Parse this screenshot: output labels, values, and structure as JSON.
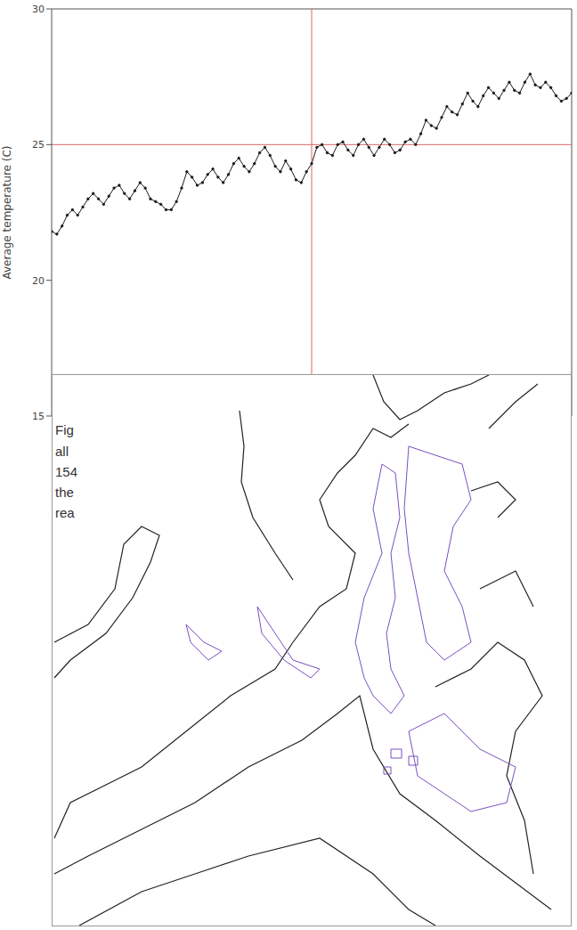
{
  "chart_data": {
    "type": "line",
    "y_label": "Average temperature (C)",
    "x": [
      0,
      1,
      2,
      3,
      4,
      5,
      6,
      7,
      8,
      9,
      10,
      11,
      12,
      13,
      14,
      15,
      16,
      17,
      18,
      19,
      20,
      21,
      22,
      23,
      24,
      25,
      26,
      27,
      28,
      29,
      30,
      31,
      32,
      33,
      34,
      35,
      36,
      37,
      38,
      39,
      40,
      41,
      42,
      43,
      44,
      45,
      46,
      47,
      48,
      49,
      50,
      51,
      52,
      53,
      54,
      55,
      56,
      57,
      58,
      59,
      60,
      61,
      62,
      63,
      64,
      65,
      66,
      67,
      68,
      69,
      70,
      71,
      72,
      73,
      74,
      75,
      76,
      77,
      78,
      79,
      80,
      81,
      82,
      83,
      84,
      85,
      86,
      87,
      88,
      89,
      90,
      91,
      92,
      93,
      94,
      95,
      96,
      97,
      98,
      99,
      100
    ],
    "values": [
      21.8,
      21.7,
      22.0,
      22.4,
      22.6,
      22.4,
      22.7,
      23.0,
      23.2,
      23.0,
      22.8,
      23.1,
      23.4,
      23.5,
      23.2,
      23.0,
      23.3,
      23.6,
      23.4,
      23.0,
      22.9,
      22.8,
      22.6,
      22.6,
      22.9,
      23.4,
      24.0,
      23.8,
      23.5,
      23.6,
      23.9,
      24.1,
      23.8,
      23.6,
      23.9,
      24.3,
      24.5,
      24.2,
      24.0,
      24.3,
      24.7,
      24.9,
      24.6,
      24.2,
      24.0,
      24.4,
      24.1,
      23.7,
      23.6,
      24.0,
      24.3,
      24.9,
      25.0,
      24.7,
      24.6,
      25.0,
      25.1,
      24.8,
      24.6,
      25.0,
      25.2,
      24.9,
      24.6,
      24.9,
      25.2,
      25.0,
      24.7,
      24.8,
      25.1,
      25.2,
      25.0,
      25.4,
      25.9,
      25.7,
      25.6,
      26.0,
      26.4,
      26.2,
      26.1,
      26.5,
      26.9,
      26.6,
      26.4,
      26.8,
      27.1,
      26.9,
      26.7,
      27.0,
      27.3,
      27.0,
      26.9,
      27.3,
      27.6,
      27.2,
      27.1,
      27.3,
      27.1,
      26.8,
      26.6,
      26.7,
      26.9
    ],
    "color": "#1a1a1a",
    "marker": "dot",
    "xlim": [
      0,
      100
    ],
    "ylim": [
      15,
      30
    ],
    "yticks": [
      15,
      20,
      25,
      30
    ],
    "grid": false,
    "tick_labels": "y",
    "reference_lines": [
      {
        "axis": "y",
        "value": 25,
        "color": "#e06666"
      },
      {
        "axis": "x",
        "value": 50,
        "color": "#e06666"
      }
    ],
    "annotations": [
      "Fig",
      "all",
      "154",
      "the",
      "rea"
    ]
  }
}
